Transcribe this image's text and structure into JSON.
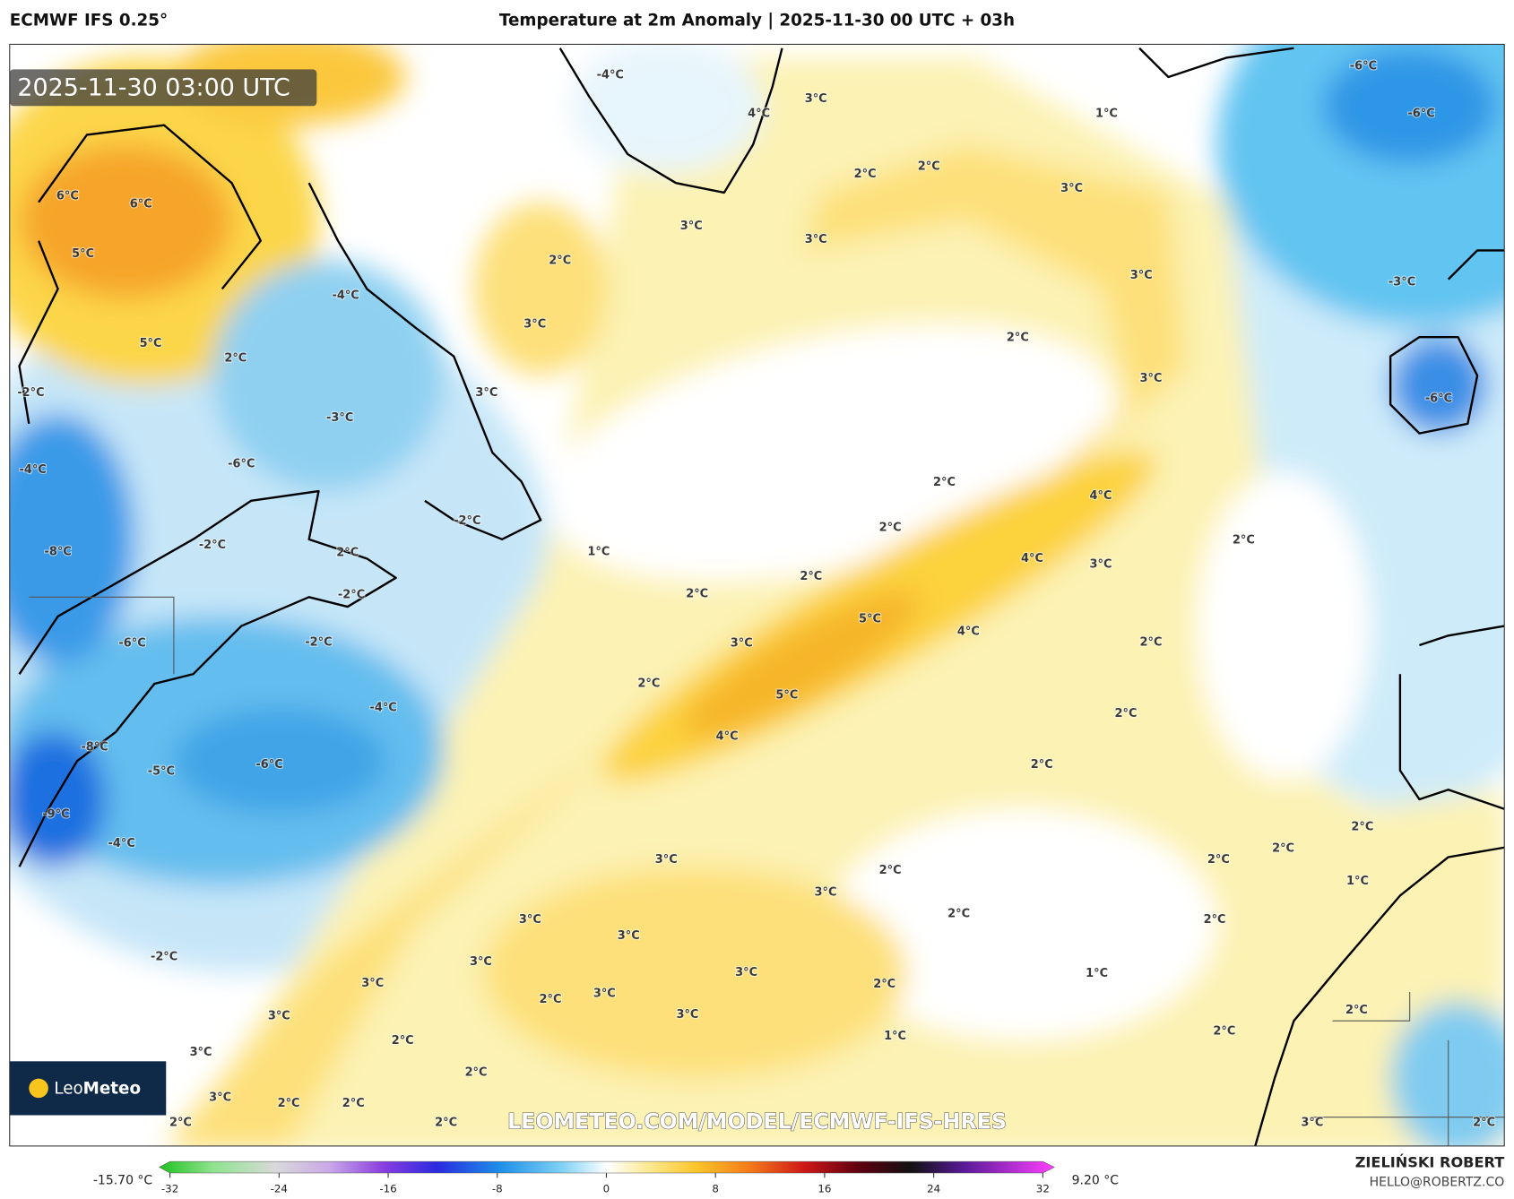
{
  "header": {
    "model": "ECMWF IFS 0.25°",
    "title": "Temperature at 2m Anomaly | 2025-11-30 00 UTC + 03h"
  },
  "map": {
    "timestamp": "2025-11-30 03:00 UTC",
    "watermark": "LEOMETEO.COM/MODEL/ECMWF-IFS-HRES",
    "logo": {
      "prefix": "Leo",
      "suffix": "Meteo"
    },
    "labels": [
      "6°C",
      "6°C",
      "5°C",
      "5°C",
      "2°C",
      "-4°C",
      "-2°C",
      "-3°C",
      "-4°C",
      "-6°C",
      "-8°C",
      "-2°C",
      "2°C",
      "-2°C",
      "-2°C",
      "-6°C",
      "-2°C",
      "-4°C",
      "-8°C",
      "-5°C",
      "-6°C",
      "-9°C",
      "-4°C",
      "-2°C",
      "3°C",
      "-4°C",
      "4°C",
      "3°C",
      "2°C",
      "3°C",
      "3°C",
      "1°C",
      "2°C",
      "2°C",
      "3°C",
      "3°C",
      "3°C",
      "2°C",
      "3°C",
      "2°C",
      "4°C",
      "2°C",
      "1°C",
      "4°C",
      "3°C",
      "2°C",
      "2°C",
      "5°C",
      "3°C",
      "4°C",
      "2°C",
      "5°C",
      "4°C",
      "2°C",
      "2°C",
      "2°C",
      "2°C",
      "-6°C",
      "-6°C",
      "-3°C",
      "-6°C",
      "3°C",
      "2°C",
      "3°C",
      "2°C",
      "3°C",
      "3°C",
      "3°C",
      "3°C",
      "3°C",
      "2°C",
      "3°C",
      "2°C",
      "3°C",
      "3°C",
      "2°C",
      "1°C",
      "3°C",
      "2°C",
      "3°C",
      "2°C",
      "2°C",
      "2°C",
      "2°C",
      "2°C",
      "2°C",
      "2°C",
      "1°C",
      "2°C",
      "1°C",
      "2°C",
      "2°C",
      "3°C",
      "2°C"
    ]
  },
  "legend": {
    "min_label": "-15.70 °C",
    "max_label": "9.20 °C",
    "range": [
      -32,
      32
    ],
    "ticks": [
      -32,
      -24,
      -16,
      -8,
      0,
      8,
      16,
      24,
      32
    ]
  },
  "footer": {
    "author": "ZIELIŃSKI ROBERT",
    "email": "HELLO@ROBERTZ.CO"
  }
}
